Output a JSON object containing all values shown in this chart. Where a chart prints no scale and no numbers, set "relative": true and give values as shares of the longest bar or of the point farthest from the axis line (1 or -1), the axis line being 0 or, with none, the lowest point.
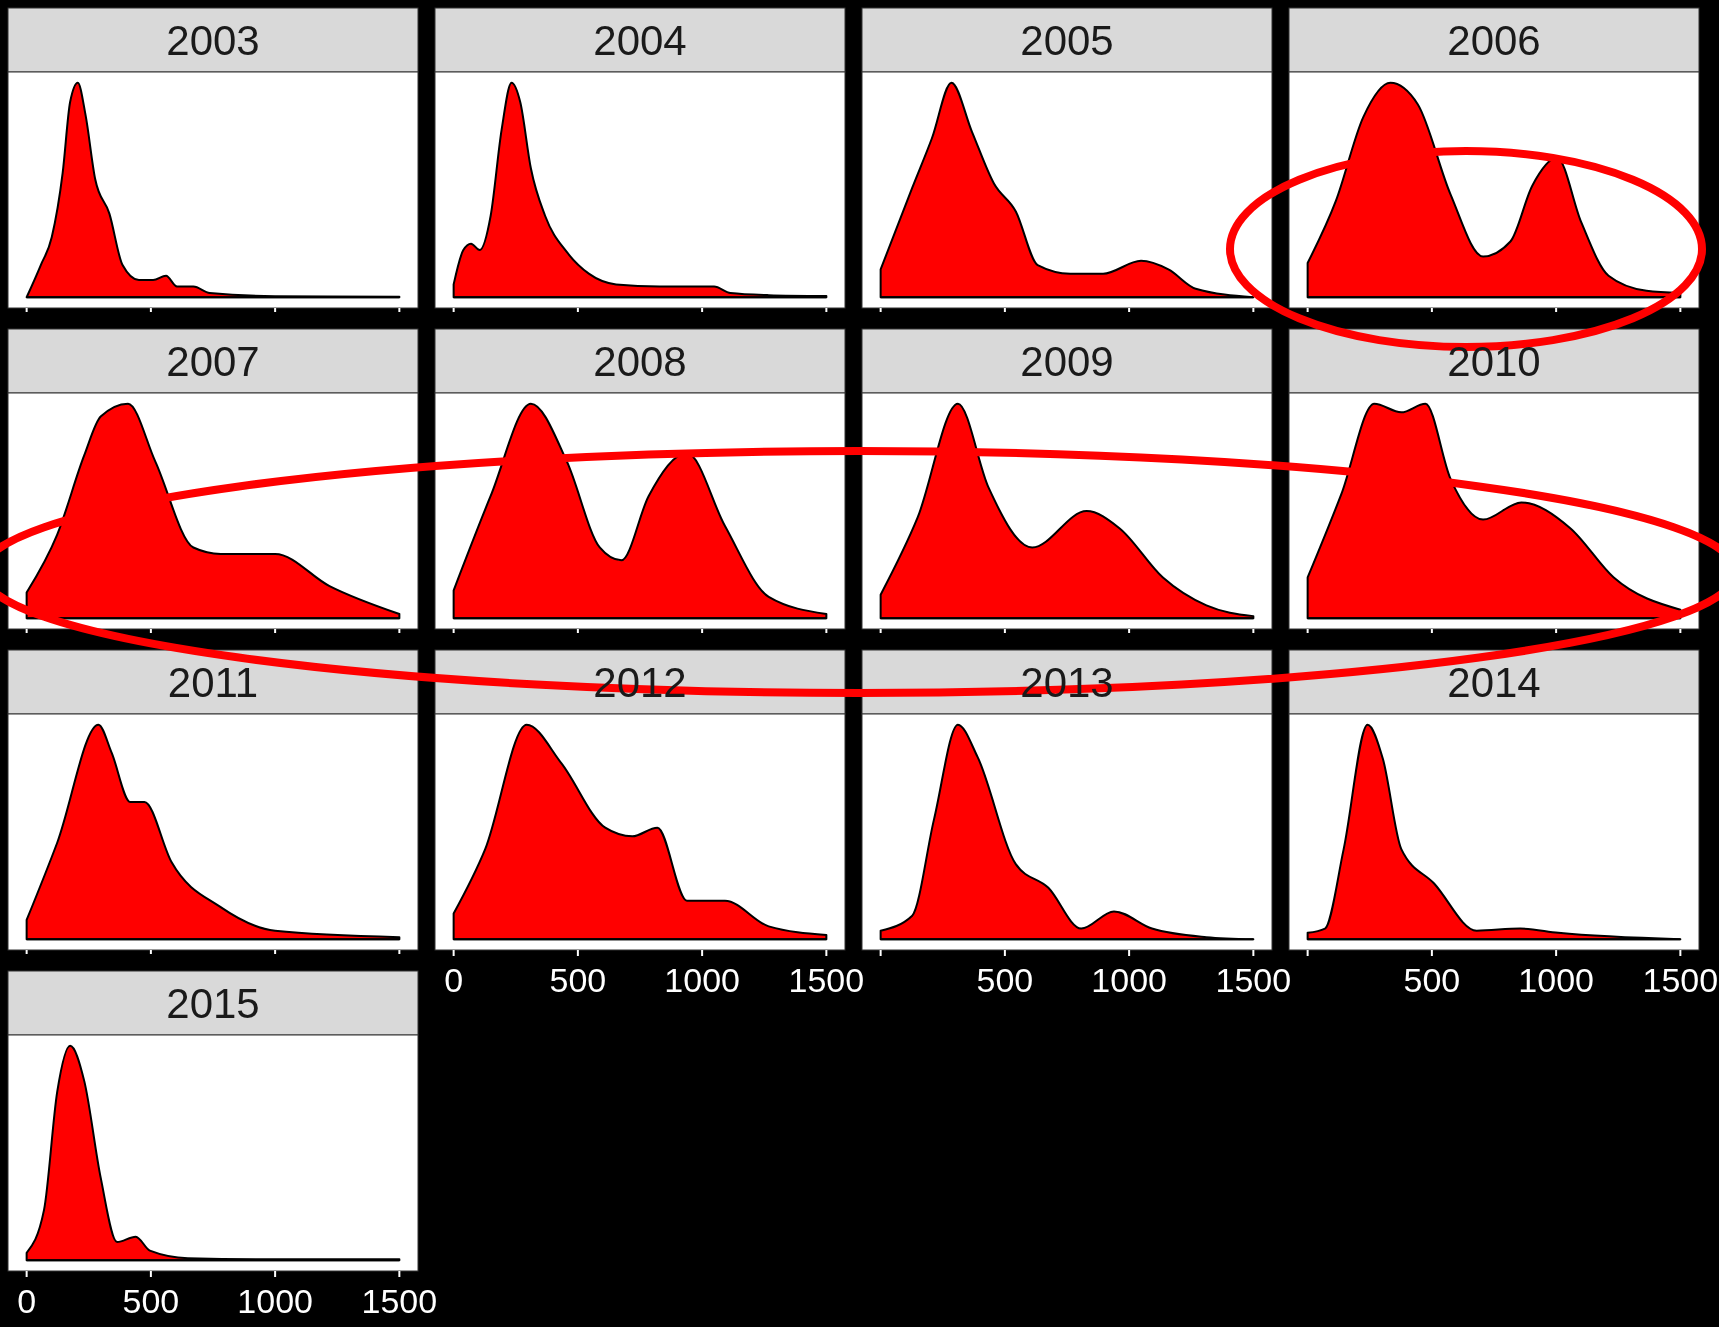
{
  "chart_data": [
    {
      "type": "area",
      "title": "2003",
      "relative": true,
      "color": "#ff0000",
      "x": [
        0,
        57,
        101,
        145,
        175,
        206,
        237,
        276,
        333,
        386,
        452,
        509,
        561,
        605,
        671,
        737,
        1000,
        1500
      ],
      "values": [
        0,
        0.15,
        0.28,
        0.58,
        0.91,
        1,
        0.85,
        0.55,
        0.39,
        0.15,
        0.08,
        0.08,
        0.1,
        0.05,
        0.05,
        0.02,
        0.005,
        0.003
      ],
      "xlim": [
        -75,
        1575
      ],
      "xticks": [
        0,
        500,
        1000,
        1500
      ],
      "tick_labels": false
    },
    {
      "type": "area",
      "title": "2004",
      "relative": true,
      "color": "#ff0000",
      "x": [
        0,
        39,
        70,
        105,
        149,
        193,
        233,
        268,
        311,
        368,
        456,
        544,
        654,
        829,
        1048,
        1114,
        1268,
        1500
      ],
      "values": [
        0.06,
        0.22,
        0.25,
        0.22,
        0.38,
        0.78,
        1,
        0.91,
        0.6,
        0.38,
        0.21,
        0.11,
        0.06,
        0.05,
        0.05,
        0.02,
        0.01,
        0.006
      ],
      "xlim": [
        -75,
        1575
      ],
      "xticks": [
        0,
        500,
        1000,
        1500
      ],
      "tick_labels": false
    },
    {
      "type": "area",
      "title": "2005",
      "relative": true,
      "color": "#ff0000",
      "x": [
        0,
        127,
        206,
        285,
        368,
        456,
        544,
        632,
        763,
        895,
        1048,
        1158,
        1268,
        1500
      ],
      "values": [
        0.13,
        0.51,
        0.74,
        1,
        0.77,
        0.53,
        0.4,
        0.15,
        0.11,
        0.11,
        0.17,
        0.13,
        0.04,
        0
      ],
      "xlim": [
        -75,
        1575
      ],
      "xticks": [
        0,
        500,
        1000,
        1500
      ],
      "tick_labels": false
    },
    {
      "type": "area",
      "title": "2006",
      "relative": true,
      "color": "#ff0000",
      "x": [
        0,
        114,
        224,
        333,
        443,
        575,
        706,
        816,
        904,
        1004,
        1101,
        1211,
        1364,
        1500
      ],
      "values": [
        0.16,
        0.45,
        0.84,
        1,
        0.9,
        0.48,
        0.19,
        0.26,
        0.52,
        0.65,
        0.35,
        0.1,
        0.03,
        0.02
      ],
      "xlim": [
        -75,
        1575
      ],
      "xticks": [
        0,
        500,
        1000,
        1500
      ],
      "tick_labels": false
    },
    {
      "type": "area",
      "title": "2007",
      "relative": true,
      "color": "#ff0000",
      "x": [
        0,
        123,
        232,
        298,
        408,
        518,
        671,
        781,
        1000,
        1219,
        1500
      ],
      "values": [
        0.12,
        0.39,
        0.76,
        0.94,
        1,
        0.73,
        0.33,
        0.3,
        0.3,
        0.15,
        0.02
      ],
      "xlim": [
        -75,
        1575
      ],
      "xticks": [
        0,
        500,
        1000,
        1500
      ],
      "tick_labels": false
    },
    {
      "type": "area",
      "title": "2008",
      "relative": true,
      "color": "#ff0000",
      "x": [
        0,
        149,
        311,
        456,
        588,
        675,
        785,
        939,
        1092,
        1268,
        1500
      ],
      "values": [
        0.13,
        0.57,
        1,
        0.73,
        0.33,
        0.27,
        0.57,
        0.77,
        0.43,
        0.1,
        0.02
      ],
      "xlim": [
        -75,
        1575
      ],
      "xticks": [
        0,
        500,
        1000,
        1500
      ],
      "tick_labels": false
    },
    {
      "type": "area",
      "title": "2009",
      "relative": true,
      "color": "#ff0000",
      "x": [
        0,
        149,
        311,
        434,
        610,
        829,
        961,
        1136,
        1311,
        1500
      ],
      "values": [
        0.11,
        0.47,
        1,
        0.61,
        0.33,
        0.5,
        0.42,
        0.19,
        0.06,
        0.01
      ],
      "xlim": [
        -75,
        1575
      ],
      "xticks": [
        0,
        500,
        1000,
        1500
      ],
      "tick_labels": false
    },
    {
      "type": "area",
      "title": "2010",
      "relative": true,
      "color": "#ff0000",
      "x": [
        0,
        136,
        268,
        377,
        474,
        575,
        706,
        860,
        1057,
        1232,
        1500
      ],
      "values": [
        0.19,
        0.58,
        1,
        0.96,
        1,
        0.65,
        0.46,
        0.54,
        0.42,
        0.19,
        0.04
      ],
      "xlim": [
        -75,
        1575
      ],
      "xticks": [
        0,
        500,
        1000,
        1500
      ],
      "tick_labels": false
    },
    {
      "type": "area",
      "title": "2011",
      "relative": true,
      "color": "#ff0000",
      "x": [
        0,
        123,
        289,
        342,
        417,
        474,
        583,
        781,
        1000,
        1500
      ],
      "values": [
        0.09,
        0.45,
        1,
        0.87,
        0.64,
        0.64,
        0.36,
        0.15,
        0.04,
        0.01
      ],
      "xlim": [
        -75,
        1575
      ],
      "xticks": [
        0,
        500,
        1000,
        1500
      ],
      "tick_labels": false
    },
    {
      "type": "area",
      "title": "2012",
      "relative": true,
      "color": "#ff0000",
      "x": [
        0,
        127,
        294,
        434,
        610,
        719,
        820,
        939,
        1092,
        1268,
        1500
      ],
      "values": [
        0.12,
        0.42,
        1,
        0.82,
        0.52,
        0.48,
        0.52,
        0.18,
        0.18,
        0.06,
        0.02
      ],
      "xlim": [
        -75,
        1575
      ],
      "xticks": [
        0,
        500,
        1000,
        1500
      ],
      "tick_labels": "x"
    },
    {
      "type": "area",
      "title": "2013",
      "relative": true,
      "color": "#ff0000",
      "x": [
        0,
        127,
        215,
        311,
        390,
        544,
        675,
        807,
        939,
        1092,
        1311,
        1500
      ],
      "values": [
        0.04,
        0.11,
        0.56,
        1,
        0.85,
        0.35,
        0.24,
        0.05,
        0.13,
        0.05,
        0.01,
        0
      ],
      "xlim": [
        -75,
        1575
      ],
      "xticks": [
        {
          "value": 0,
          "label": null
        },
        500,
        1000,
        1500
      ],
      "tick_labels": "x"
    },
    {
      "type": "area",
      "title": "2014",
      "relative": true,
      "color": "#ff0000",
      "x": [
        0,
        70,
        145,
        241,
        303,
        377,
        509,
        680,
        855,
        1009,
        1500
      ],
      "values": [
        0.03,
        0.05,
        0.42,
        1,
        0.84,
        0.42,
        0.26,
        0.04,
        0.05,
        0.03,
        0
      ],
      "xlim": [
        -75,
        1575
      ],
      "xticks": [
        {
          "value": 0,
          "label": null
        },
        500,
        1000,
        1500
      ],
      "tick_labels": "x"
    },
    {
      "type": "area",
      "title": "2015",
      "relative": true,
      "color": "#ff0000",
      "x": [
        0,
        70,
        123,
        175,
        232,
        298,
        364,
        439,
        496,
        649,
        1000,
        1500
      ],
      "values": [
        0.035,
        0.235,
        0.785,
        1,
        0.835,
        0.385,
        0.085,
        0.11,
        0.045,
        0.01,
        0.005,
        0.005
      ],
      "xlim": [
        -75,
        1575
      ],
      "xticks": [
        0,
        500,
        1000,
        1500
      ],
      "tick_labels": "x"
    }
  ]
}
